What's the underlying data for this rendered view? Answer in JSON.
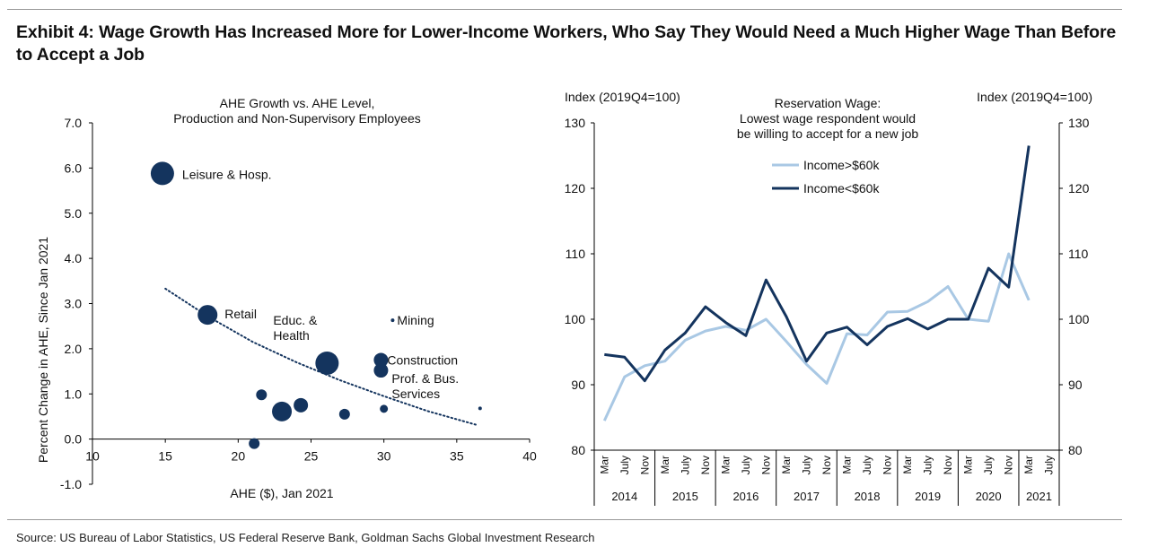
{
  "title": "Exhibit 4: Wage Growth Has Increased More for Lower-Income Workers, Who Say They Would Need a Much Higher Wage Than Before to Accept a Job",
  "source": "Source: US Bureau of Labor Statistics, US Federal Reserve Bank, Goldman Sachs Global Investment Research",
  "colors": {
    "navy": "#14345e",
    "light_blue": "#a9c8e4",
    "axis": "#000000"
  },
  "chart_data": [
    {
      "type": "scatter",
      "title_lines": [
        "AHE Growth vs. AHE Level,",
        "Production and Non-Supervisory Employees"
      ],
      "xlabel": "AHE ($), Jan 2021",
      "ylabel": "Percent  Change in AHE, Since Jan 2021",
      "xlim": [
        10,
        40
      ],
      "ylim": [
        -1.0,
        7.0
      ],
      "xticks": [
        "10",
        "15",
        "20",
        "25",
        "30",
        "35",
        "40"
      ],
      "yticks": [
        "-1.0",
        "0.0",
        "1.0",
        "2.0",
        "3.0",
        "4.0",
        "5.0",
        "6.0",
        "7.0"
      ],
      "grid": false,
      "points": [
        {
          "label": "Leisure & Hosp.",
          "x": 14.8,
          "y": 5.88,
          "size": "large"
        },
        {
          "label": "Retail",
          "x": 17.9,
          "y": 2.75,
          "size": "medium"
        },
        {
          "label": "Educ. & Health",
          "label_lines": [
            "Educ. &",
            "Health"
          ],
          "x": 26.1,
          "y": 1.68,
          "size": "large"
        },
        {
          "label": "Mining",
          "x": 30.6,
          "y": 2.63,
          "size": "tiny"
        },
        {
          "label": "Construction",
          "x": 29.8,
          "y": 1.75,
          "size": "small"
        },
        {
          "label": "Prof. & Bus. Services",
          "label_lines": [
            "Prof. & Bus.",
            "Services"
          ],
          "x": 29.8,
          "y": 1.52,
          "size": "small"
        },
        {
          "label": "",
          "x": 21.6,
          "y": 0.98,
          "size": "xsmall"
        },
        {
          "label": "",
          "x": 23.0,
          "y": 0.61,
          "size": "medium"
        },
        {
          "label": "",
          "x": 24.3,
          "y": 0.75,
          "size": "small"
        },
        {
          "label": "",
          "x": 27.3,
          "y": 0.55,
          "size": "xsmall"
        },
        {
          "label": "",
          "x": 30.0,
          "y": 0.67,
          "size": "tiny2"
        },
        {
          "label": "",
          "x": 36.6,
          "y": 0.68,
          "size": "tiny"
        },
        {
          "label": "",
          "x": 21.1,
          "y": -0.1,
          "size": "xsmall"
        }
      ],
      "trendline": {
        "style": "dotted",
        "x": [
          15,
          18,
          21,
          24,
          27,
          30,
          33,
          36.3
        ],
        "y": [
          3.33,
          2.7,
          2.15,
          1.7,
          1.3,
          0.95,
          0.62,
          0.32
        ]
      }
    },
    {
      "type": "line",
      "title_lines": [
        "Reservation Wage:",
        "Lowest wage respondent would",
        "be willing to accept for a new job"
      ],
      "left_axis_label": "Index (2019Q4=100)",
      "right_axis_label": "Index (2019Q4=100)",
      "ylim": [
        80,
        130
      ],
      "yticks": [
        "80",
        "90",
        "100",
        "110",
        "120",
        "130"
      ],
      "month_ticks": [
        "Mar",
        "July",
        "Nov",
        "Mar",
        "July",
        "Nov",
        "Mar",
        "July",
        "Nov",
        "Mar",
        "July",
        "Nov",
        "Mar",
        "July",
        "Nov",
        "Mar",
        "July",
        "Nov",
        "Mar",
        "July",
        "Nov",
        "Mar",
        "July"
      ],
      "years": [
        "2014",
        "2015",
        "2016",
        "2017",
        "2018",
        "2019",
        "2020",
        "2021"
      ],
      "x": [
        "2014-03",
        "2014-07",
        "2014-11",
        "2015-03",
        "2015-07",
        "2015-11",
        "2016-03",
        "2016-07",
        "2016-11",
        "2017-03",
        "2017-07",
        "2017-11",
        "2018-03",
        "2018-07",
        "2018-11",
        "2019-03",
        "2019-07",
        "2019-11",
        "2020-03",
        "2020-07",
        "2020-11",
        "2021-03"
      ],
      "legend_placement": "top-center",
      "grid": false,
      "series": [
        {
          "name": "Income>$60k",
          "color": "#a9c8e4",
          "values": [
            84.5,
            91.2,
            92.9,
            93.6,
            96.8,
            98.2,
            98.9,
            98.3,
            100.0,
            96.6,
            93.1,
            90.2,
            97.8,
            97.6,
            101.1,
            101.2,
            102.7,
            105.0,
            100.0,
            99.7,
            110.0,
            102.9
          ]
        },
        {
          "name": "Income<$60k",
          "color": "#14345e",
          "values": [
            94.6,
            94.2,
            90.6,
            95.3,
            97.9,
            101.9,
            99.5,
            97.5,
            106.0,
            100.4,
            93.6,
            97.9,
            98.8,
            96.1,
            98.9,
            100.1,
            98.5,
            100.0,
            100.0,
            107.8,
            104.9,
            126.5
          ]
        }
      ]
    }
  ]
}
